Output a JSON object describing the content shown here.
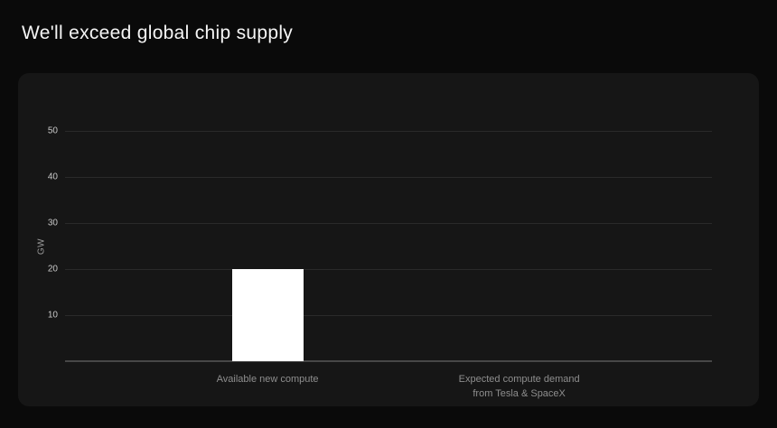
{
  "title": "We'll exceed global chip supply",
  "colors": {
    "page_bg": "#0a0a0a",
    "panel_bg": "#161616",
    "bar": "#ffffff",
    "gridline": "#2a2a2a",
    "axis_line": "#474747",
    "tick_text": "#c9c9c9",
    "category_text": "#8e8e8e",
    "title_text": "#f5f5f5"
  },
  "chart_data": {
    "type": "bar",
    "title": "We'll exceed global chip supply",
    "categories": [
      "Available new compute",
      "Expected compute demand from Tesla & SpaceX"
    ],
    "category_lines": [
      [
        "Available new compute"
      ],
      [
        "Expected compute demand",
        "from Tesla & SpaceX"
      ]
    ],
    "values": [
      20,
      null
    ],
    "xlabel": "",
    "ylabel": "GW",
    "ylim": [
      0,
      50
    ],
    "yticks": [
      10,
      20,
      30,
      40,
      50
    ],
    "grid": true,
    "legend": false,
    "bar_color": "#ffffff"
  }
}
